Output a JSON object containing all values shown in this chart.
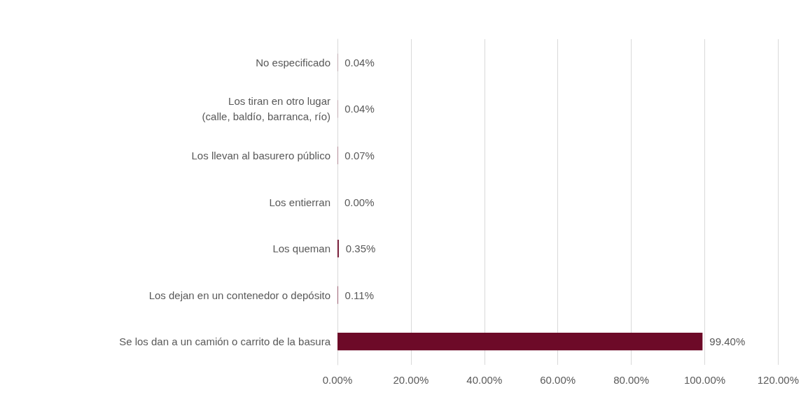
{
  "chart_data": {
    "type": "bar",
    "orientation": "horizontal",
    "categories": [
      "No especificado",
      "Los tiran en otro lugar\n(calle, baldío, barranca, río)",
      "Los llevan al basurero público",
      "Los entierran",
      "Los queman",
      "Los dejan en un contenedor o depósito",
      "Se los dan a un camión o carrito de la basura"
    ],
    "values": [
      0.04,
      0.04,
      0.07,
      0,
      0.35,
      0.11,
      99.4
    ],
    "value_labels": [
      "0.04%",
      "0.04%",
      "0.07%",
      "0.00%",
      "0.35%",
      "0.11%",
      "99.40%"
    ],
    "color": "#6d0a28",
    "xlim": [
      0,
      120
    ],
    "xticks": [
      {
        "value": 0,
        "label": "0.00%"
      },
      {
        "value": 20,
        "label": "20.00%"
      },
      {
        "value": 40,
        "label": "40.00%"
      },
      {
        "value": 60,
        "label": "60.00%"
      },
      {
        "value": 80,
        "label": "80.00%"
      },
      {
        "value": 100,
        "label": "100.00%"
      },
      {
        "value": 120,
        "label": "120.00%"
      }
    ],
    "grid": "x"
  }
}
